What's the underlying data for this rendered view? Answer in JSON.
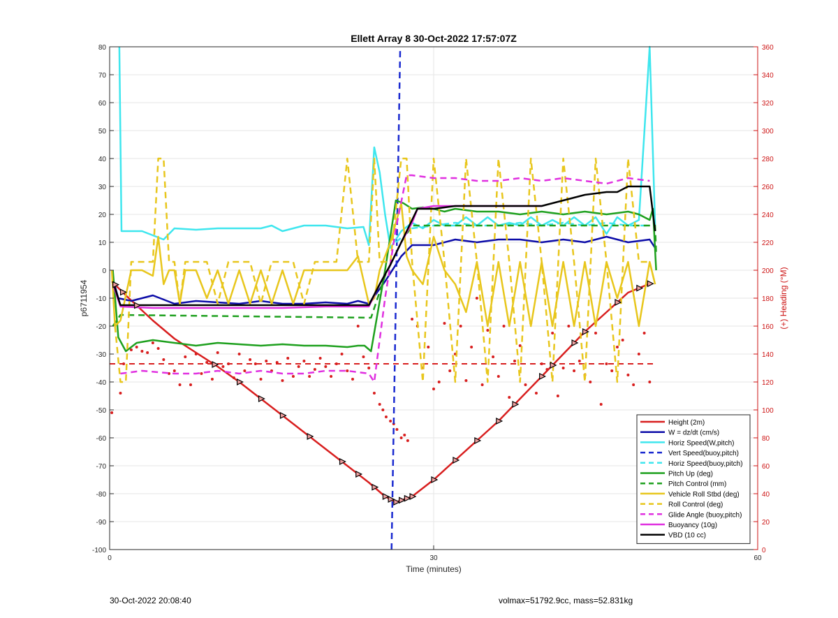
{
  "chart_data": {
    "type": "line",
    "title": "Ellett Array 8 30-Oct-2022 17:57:07Z",
    "xlabel": "Time (minutes)",
    "ylabel": "p6711954",
    "y2label": "(+) Heading (°M)",
    "xlim": [
      0,
      60
    ],
    "ylim": [
      -100,
      80
    ],
    "y2lim": [
      0,
      360
    ],
    "xticks": [
      "0",
      "30",
      "60"
    ],
    "yticks": [
      "80",
      "70",
      "60",
      "50",
      "40",
      "30",
      "20",
      "10",
      "0",
      "-10",
      "-20",
      "-30",
      "-40",
      "-50",
      "-60",
      "-70",
      "-80",
      "-90",
      "-100"
    ],
    "y2ticks": [
      "360",
      "340",
      "320",
      "300",
      "280",
      "260",
      "240",
      "220",
      "200",
      "180",
      "160",
      "140",
      "120",
      "100",
      "80",
      "60",
      "40",
      "20",
      "0"
    ],
    "grid": true,
    "legend_position": "bottom-right",
    "colors": {
      "height": "#d81e1e",
      "w": "#0c0ca8",
      "horiz_w": "#3ee6ee",
      "vert_buoy": "#1a2ad0",
      "horiz_buoy": "#3ee6ee",
      "pitch": "#1ea01e",
      "pitch_ctrl": "#1ea01e",
      "roll": "#e8c61c",
      "roll_ctrl": "#e8c61c",
      "glide": "#e030e0",
      "buoyancy": "#e030e0",
      "vbd": "#000000",
      "heading_axis": "#cc1111"
    },
    "series": [
      {
        "key": "height",
        "name": "Height (2m)",
        "style": "solid",
        "color": "#d81e1e",
        "x": [
          0.2,
          1.5,
          4,
          6,
          8,
          10,
          12,
          14,
          16,
          18,
          20,
          22,
          24,
          25.5,
          26.5,
          28,
          30,
          32,
          34,
          36,
          38,
          40,
          42,
          44,
          46,
          48,
          50.2
        ],
        "y": [
          -4,
          -9,
          -18,
          -24.5,
          -29.5,
          -34.5,
          -40,
          -46,
          -52,
          -58,
          -64,
          -70,
          -76,
          -81,
          -83,
          -81,
          -75,
          -68,
          -61,
          -54,
          -46,
          -38,
          -30,
          -22,
          -15,
          -8,
          -4.5
        ]
      },
      {
        "key": "w",
        "name": "W = dz/dt (cm/s)",
        "style": "solid",
        "color": "#0c0ca8",
        "x": [
          0.3,
          0.8,
          2,
          4,
          6,
          8,
          10,
          12,
          14,
          16,
          18,
          20,
          22,
          23,
          24,
          25.5,
          27,
          28,
          30,
          32,
          34,
          36,
          38,
          40,
          42,
          44,
          46,
          48,
          50,
          50.5
        ],
        "y": [
          -3,
          -10,
          -11,
          -9,
          -12,
          -11,
          -11.5,
          -12,
          -11,
          -12,
          -12,
          -11.5,
          -12,
          -11,
          -12,
          -4,
          5,
          9,
          9,
          11,
          10,
          11,
          11,
          10,
          11,
          10,
          12,
          10,
          11,
          8
        ]
      },
      {
        "key": "horiz_w",
        "name": "Horiz Speed(W,pitch)",
        "style": "solid",
        "color": "#3ee6ee",
        "x": [
          0.9,
          1.1,
          1.4,
          3,
          5,
          6,
          8,
          10,
          12,
          14,
          15,
          16,
          18,
          20,
          22,
          23.5,
          24,
          24.5,
          25,
          25.5,
          26,
          27,
          28,
          29,
          30,
          31,
          32,
          33,
          34,
          35,
          36,
          37,
          38,
          39,
          40,
          41,
          42,
          43,
          44,
          45,
          46,
          47,
          48,
          49,
          50,
          50.5
        ],
        "y": [
          80,
          14,
          14,
          14,
          11,
          15,
          14.5,
          15,
          15,
          15,
          16,
          14,
          16,
          16,
          15,
          15.5,
          9,
          44,
          35,
          20,
          8,
          14,
          17,
          15,
          18,
          16,
          16,
          19,
          16,
          19,
          16,
          17,
          16,
          19,
          16,
          18,
          16,
          19,
          16,
          19,
          13,
          19,
          16,
          18,
          80,
          16
        ]
      },
      {
        "key": "vert_buoy",
        "name": "Vert Speed(buoy,pitch)",
        "style": "dashed",
        "color": "#1a2ad0",
        "x": [
          26.1,
          26.9
        ],
        "y": [
          -100,
          80
        ]
      },
      {
        "key": "horiz_buoy",
        "name": "Horiz Speed(buoy,pitch)",
        "style": "dashed",
        "color": "#3ee6ee",
        "x": [
          26.5,
          28,
          30,
          32,
          34,
          36,
          38,
          40,
          42,
          44,
          46,
          48,
          50
        ],
        "y": [
          10,
          15,
          16,
          17,
          16,
          16,
          17,
          16,
          17,
          16,
          17,
          16,
          16
        ]
      },
      {
        "key": "pitch",
        "name": "Pitch Up (deg)",
        "style": "solid",
        "color": "#1ea01e",
        "x": [
          0.3,
          0.8,
          1.5,
          2.5,
          4,
          6,
          8,
          10,
          12,
          14,
          16,
          18,
          20,
          22,
          23,
          23.6,
          24.2,
          25.5,
          26.5,
          27.2,
          28,
          29,
          30,
          31,
          32,
          34,
          36,
          38,
          40,
          42,
          44,
          46,
          48,
          49,
          50,
          50.3,
          50.6
        ],
        "y": [
          0,
          -24,
          -29,
          -26,
          -25,
          -26,
          -27,
          -26,
          -26.5,
          -27,
          -26.5,
          -27,
          -27,
          -27.5,
          -27,
          -27,
          -29,
          0,
          25,
          24,
          22,
          22.5,
          22,
          21,
          22,
          21,
          21,
          20,
          21,
          20,
          21,
          20,
          21,
          20,
          18,
          22,
          0
        ]
      },
      {
        "key": "pitch_ctrl",
        "name": "Pitch Control (mm)",
        "style": "dashed",
        "color": "#1ea01e",
        "x": [
          0.3,
          1,
          24.2,
          25.5,
          27,
          28,
          50.5,
          50.6
        ],
        "y": [
          -20,
          -16,
          -17,
          -2,
          10,
          16,
          16,
          6
        ]
      },
      {
        "key": "roll",
        "name": "Vehicle Roll Stbd (deg)",
        "style": "solid",
        "color": "#e8c61c",
        "x": [
          0.2,
          0.5,
          1,
          2,
          3,
          4,
          4.5,
          5,
          5.5,
          6,
          6.5,
          7,
          8,
          9,
          10,
          11,
          12,
          13,
          14,
          15,
          16,
          17,
          18,
          19,
          20,
          21,
          22,
          23,
          24,
          24.5,
          25,
          26,
          27,
          27.5,
          28,
          29,
          30,
          31,
          32,
          33,
          34,
          35,
          36,
          37,
          38,
          39,
          40,
          41,
          42,
          43,
          44,
          45,
          46,
          47,
          48,
          49,
          50,
          50.5
        ],
        "y": [
          0,
          -20,
          -18,
          0,
          0,
          -2,
          12,
          -5,
          0,
          0,
          -12,
          0,
          0,
          -10,
          0,
          -12,
          0,
          -12,
          0,
          -12,
          0,
          -12,
          0,
          0,
          0,
          0,
          0,
          5,
          -12,
          -10,
          0,
          10,
          24,
          5,
          0,
          -5,
          12,
          0,
          -5,
          -15,
          3,
          -20,
          3,
          -20,
          3,
          -20,
          3,
          -20,
          3,
          -20,
          3,
          -20,
          3,
          -10,
          3,
          -20,
          3,
          -5
        ]
      },
      {
        "key": "roll_ctrl",
        "name": "Roll Control (deg)",
        "style": "dashed",
        "color": "#e8c61c",
        "x": [
          0.5,
          1,
          1.5,
          2,
          4,
          4.5,
          5,
          5.5,
          6,
          6.5,
          7,
          9,
          10,
          11,
          13,
          14,
          15,
          17,
          18,
          19,
          21,
          22,
          23,
          24,
          24.5,
          25,
          26,
          27,
          27.5,
          28,
          29,
          30,
          31,
          32,
          33,
          34,
          35,
          36,
          37,
          38,
          39,
          40,
          41,
          42,
          43,
          44,
          45,
          46,
          47,
          48,
          49,
          50,
          50.5
        ],
        "y": [
          -20,
          -40,
          -40,
          3,
          3,
          40,
          40,
          3,
          3,
          -12,
          3,
          3,
          -12,
          3,
          3,
          -12,
          3,
          3,
          -12,
          3,
          3,
          40,
          3,
          3,
          40,
          3,
          3,
          40,
          40,
          3,
          -40,
          40,
          3,
          -40,
          40,
          3,
          -40,
          40,
          3,
          -40,
          40,
          3,
          -40,
          40,
          3,
          -40,
          40,
          3,
          -40,
          40,
          3,
          3,
          -5
        ]
      },
      {
        "key": "glide",
        "name": "Glide Angle (buoy,pitch)",
        "style": "dashed",
        "color": "#e030e0",
        "x": [
          1,
          3,
          6,
          8,
          10,
          12,
          14,
          16,
          18,
          20,
          22,
          24,
          24.5,
          25.5,
          26.5,
          27.5,
          28,
          30,
          32,
          34,
          36,
          38,
          40,
          42,
          44,
          46,
          48,
          50
        ],
        "y": [
          -37,
          -36,
          -37,
          -37,
          -36,
          -37,
          -36,
          -37,
          -37,
          -36,
          -36,
          -37,
          -40,
          -10,
          15,
          34,
          34,
          33,
          33,
          32,
          32,
          33,
          32,
          33,
          32,
          31,
          33,
          32
        ]
      },
      {
        "key": "buoyancy",
        "name": "Buoyancy (10g)",
        "style": "solid",
        "color": "#e030e0",
        "x": [
          0.3,
          1,
          4,
          8,
          12,
          16,
          20,
          24,
          25,
          26,
          27,
          28,
          28.5,
          30,
          32,
          34,
          36,
          38,
          40
        ],
        "y": [
          -5,
          -13,
          -13.5,
          -13.5,
          -13.5,
          -13.5,
          -13,
          -13,
          -5,
          2,
          10,
          17,
          22,
          23,
          23,
          23,
          23,
          23,
          23
        ]
      },
      {
        "key": "vbd",
        "name": "VBD (10 cc)",
        "style": "solid",
        "color": "#000000",
        "x": [
          0.3,
          1,
          4,
          8,
          12,
          16,
          20,
          24,
          25,
          26,
          27,
          28,
          28.5,
          30,
          32,
          34,
          36,
          38,
          40,
          41,
          42,
          43,
          44,
          45,
          46,
          47,
          48,
          50,
          50.5
        ],
        "y": [
          -4,
          -12.5,
          -12.5,
          -12.5,
          -12.5,
          -12.5,
          -12.5,
          -12.5,
          -5,
          2,
          10,
          18,
          22,
          22,
          23,
          23,
          23,
          23,
          23,
          24,
          25,
          26,
          27,
          27.5,
          28,
          28,
          30,
          30,
          14
        ]
      }
    ],
    "heading_ref": {
      "y2": 133,
      "color": "#d81e1e",
      "style": "dashed"
    },
    "heading_points": {
      "color": "#d81e1e",
      "x": [
        0.2,
        1,
        1.3,
        2,
        2.5,
        3,
        3.5,
        4,
        4.5,
        5,
        5.5,
        6,
        6.5,
        7,
        7.5,
        8,
        8.5,
        9,
        9.5,
        10,
        10.5,
        11,
        11.5,
        12,
        12.5,
        13,
        13.5,
        14,
        14.5,
        15,
        15.5,
        16,
        16.5,
        17,
        17.5,
        18,
        18.5,
        19,
        19.5,
        20,
        20.5,
        21,
        21.5,
        22,
        22.5,
        23,
        23.5,
        24,
        24.5,
        25,
        25.3,
        25.6,
        26,
        26.3,
        26.6,
        27,
        27.3,
        27.6,
        28,
        28.5,
        29,
        29.5,
        30,
        30.5,
        31,
        31.5,
        32,
        32.5,
        33,
        33.5,
        34,
        34.5,
        35,
        35.5,
        36,
        36.5,
        37,
        37.5,
        38,
        38.5,
        39,
        39.5,
        40,
        40.5,
        41,
        41.5,
        42,
        42.5,
        43,
        43.5,
        44,
        44.5,
        45,
        45.5,
        46,
        46.5,
        47,
        47.5,
        48,
        48.5,
        49,
        49.5,
        50
      ],
      "y2": [
        98,
        112,
        133,
        143,
        145,
        142,
        141,
        148,
        144,
        136,
        126,
        128,
        118,
        138,
        118,
        140,
        126,
        134,
        122,
        141,
        131,
        133,
        123,
        140,
        128,
        136,
        133,
        122,
        135,
        128,
        134,
        121,
        137,
        124,
        131,
        135,
        124,
        129,
        137,
        131,
        124,
        133,
        140,
        128,
        122,
        160,
        138,
        130,
        112,
        104,
        100,
        95,
        92,
        90,
        86,
        80,
        82,
        78,
        165,
        160,
        130,
        145,
        115,
        120,
        162,
        128,
        140,
        160,
        121,
        145,
        180,
        118,
        157,
        138,
        124,
        160,
        109,
        135,
        146,
        118,
        162,
        112,
        133,
        129,
        155,
        110,
        130,
        160,
        128,
        135,
        125,
        120,
        155,
        104,
        133,
        128,
        145,
        150,
        125,
        118,
        140,
        155,
        120,
        150
      ]
    },
    "markers": {
      "x": [
        0.5,
        1.2,
        2.5,
        9.7,
        12,
        14,
        16,
        18.5,
        21.5,
        23,
        24.5,
        25.5,
        26,
        26.5,
        27,
        27.5,
        28,
        30,
        32,
        34,
        36,
        37.5,
        40,
        41,
        43,
        44,
        47,
        49,
        50
      ]
    },
    "footer_left": "30-Oct-2022 20:08:40",
    "footer_right": "volmax=51792.9cc, mass=52.831kg"
  }
}
